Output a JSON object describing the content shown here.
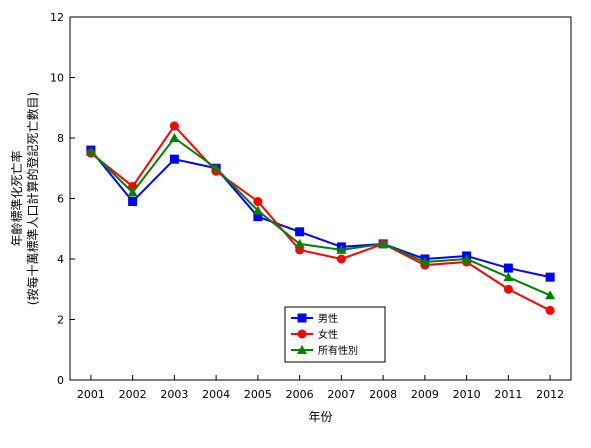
{
  "chart_data": {
    "type": "line",
    "title": "",
    "xlabel": "年份",
    "ylabel_line1": "年齡標準化死亡率",
    "ylabel_line2": "(按每十萬標準人口計算的登記死亡數目)",
    "x": [
      "2001",
      "2002",
      "2003",
      "2004",
      "2005",
      "2006",
      "2007",
      "2008",
      "2009",
      "2010",
      "2011",
      "2012"
    ],
    "ylim": [
      0,
      12
    ],
    "yticks": [
      0,
      2,
      4,
      6,
      8,
      10,
      12
    ],
    "grid": false,
    "legend_position": "bottom-center",
    "series": [
      {
        "name": "男性",
        "color": "#0000ff",
        "marker": "square",
        "values": [
          7.6,
          5.9,
          7.3,
          7.0,
          5.4,
          4.9,
          4.4,
          4.5,
          4.0,
          4.1,
          3.7,
          3.4
        ]
      },
      {
        "name": "女性",
        "color": "#ff0000",
        "marker": "circle",
        "values": [
          7.5,
          6.4,
          8.4,
          6.9,
          5.9,
          4.3,
          4.0,
          4.5,
          3.8,
          3.9,
          3.0,
          2.3
        ]
      },
      {
        "name": "所有性別",
        "color": "#008000",
        "marker": "triangle",
        "values": [
          7.55,
          6.2,
          8.0,
          7.0,
          5.6,
          4.5,
          4.3,
          4.5,
          3.9,
          4.0,
          3.4,
          2.8
        ]
      }
    ]
  }
}
